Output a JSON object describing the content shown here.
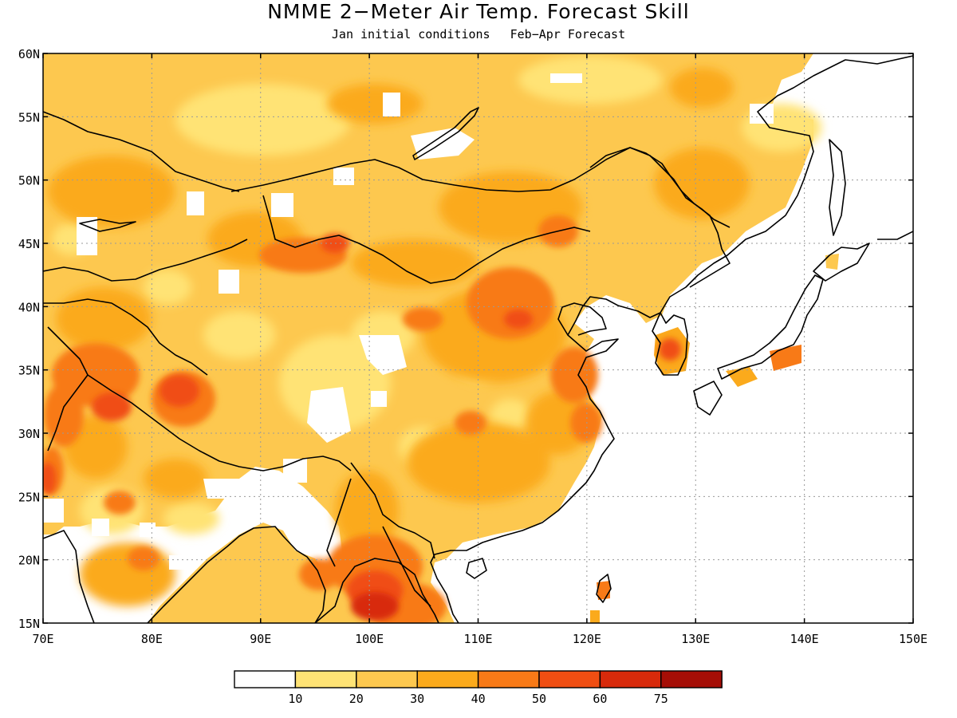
{
  "title": "NMME 2−Meter Air Temp. Forecast Skill",
  "subtitle": {
    "initial": "Jan initial conditions",
    "forecast": "Feb−Apr Forecast"
  },
  "map": {
    "lon_range": [
      70,
      150
    ],
    "lat_range": [
      15,
      60
    ],
    "lon_ticks": [
      "70E",
      "80E",
      "90E",
      "100E",
      "110E",
      "120E",
      "130E",
      "140E",
      "150E"
    ],
    "lat_ticks": [
      "15N",
      "20N",
      "25N",
      "30N",
      "35N",
      "40N",
      "45N",
      "50N",
      "55N",
      "60N"
    ],
    "grid": "dotted"
  },
  "colorbar": {
    "colors": [
      "#ffffff",
      "#ffe375",
      "#fdc84f",
      "#fbaa1c",
      "#f87a17",
      "#f04e12",
      "#d82a0b",
      "#a50e06"
    ],
    "labels": [
      "10",
      "20",
      "30",
      "40",
      "50",
      "60",
      "75"
    ]
  }
}
